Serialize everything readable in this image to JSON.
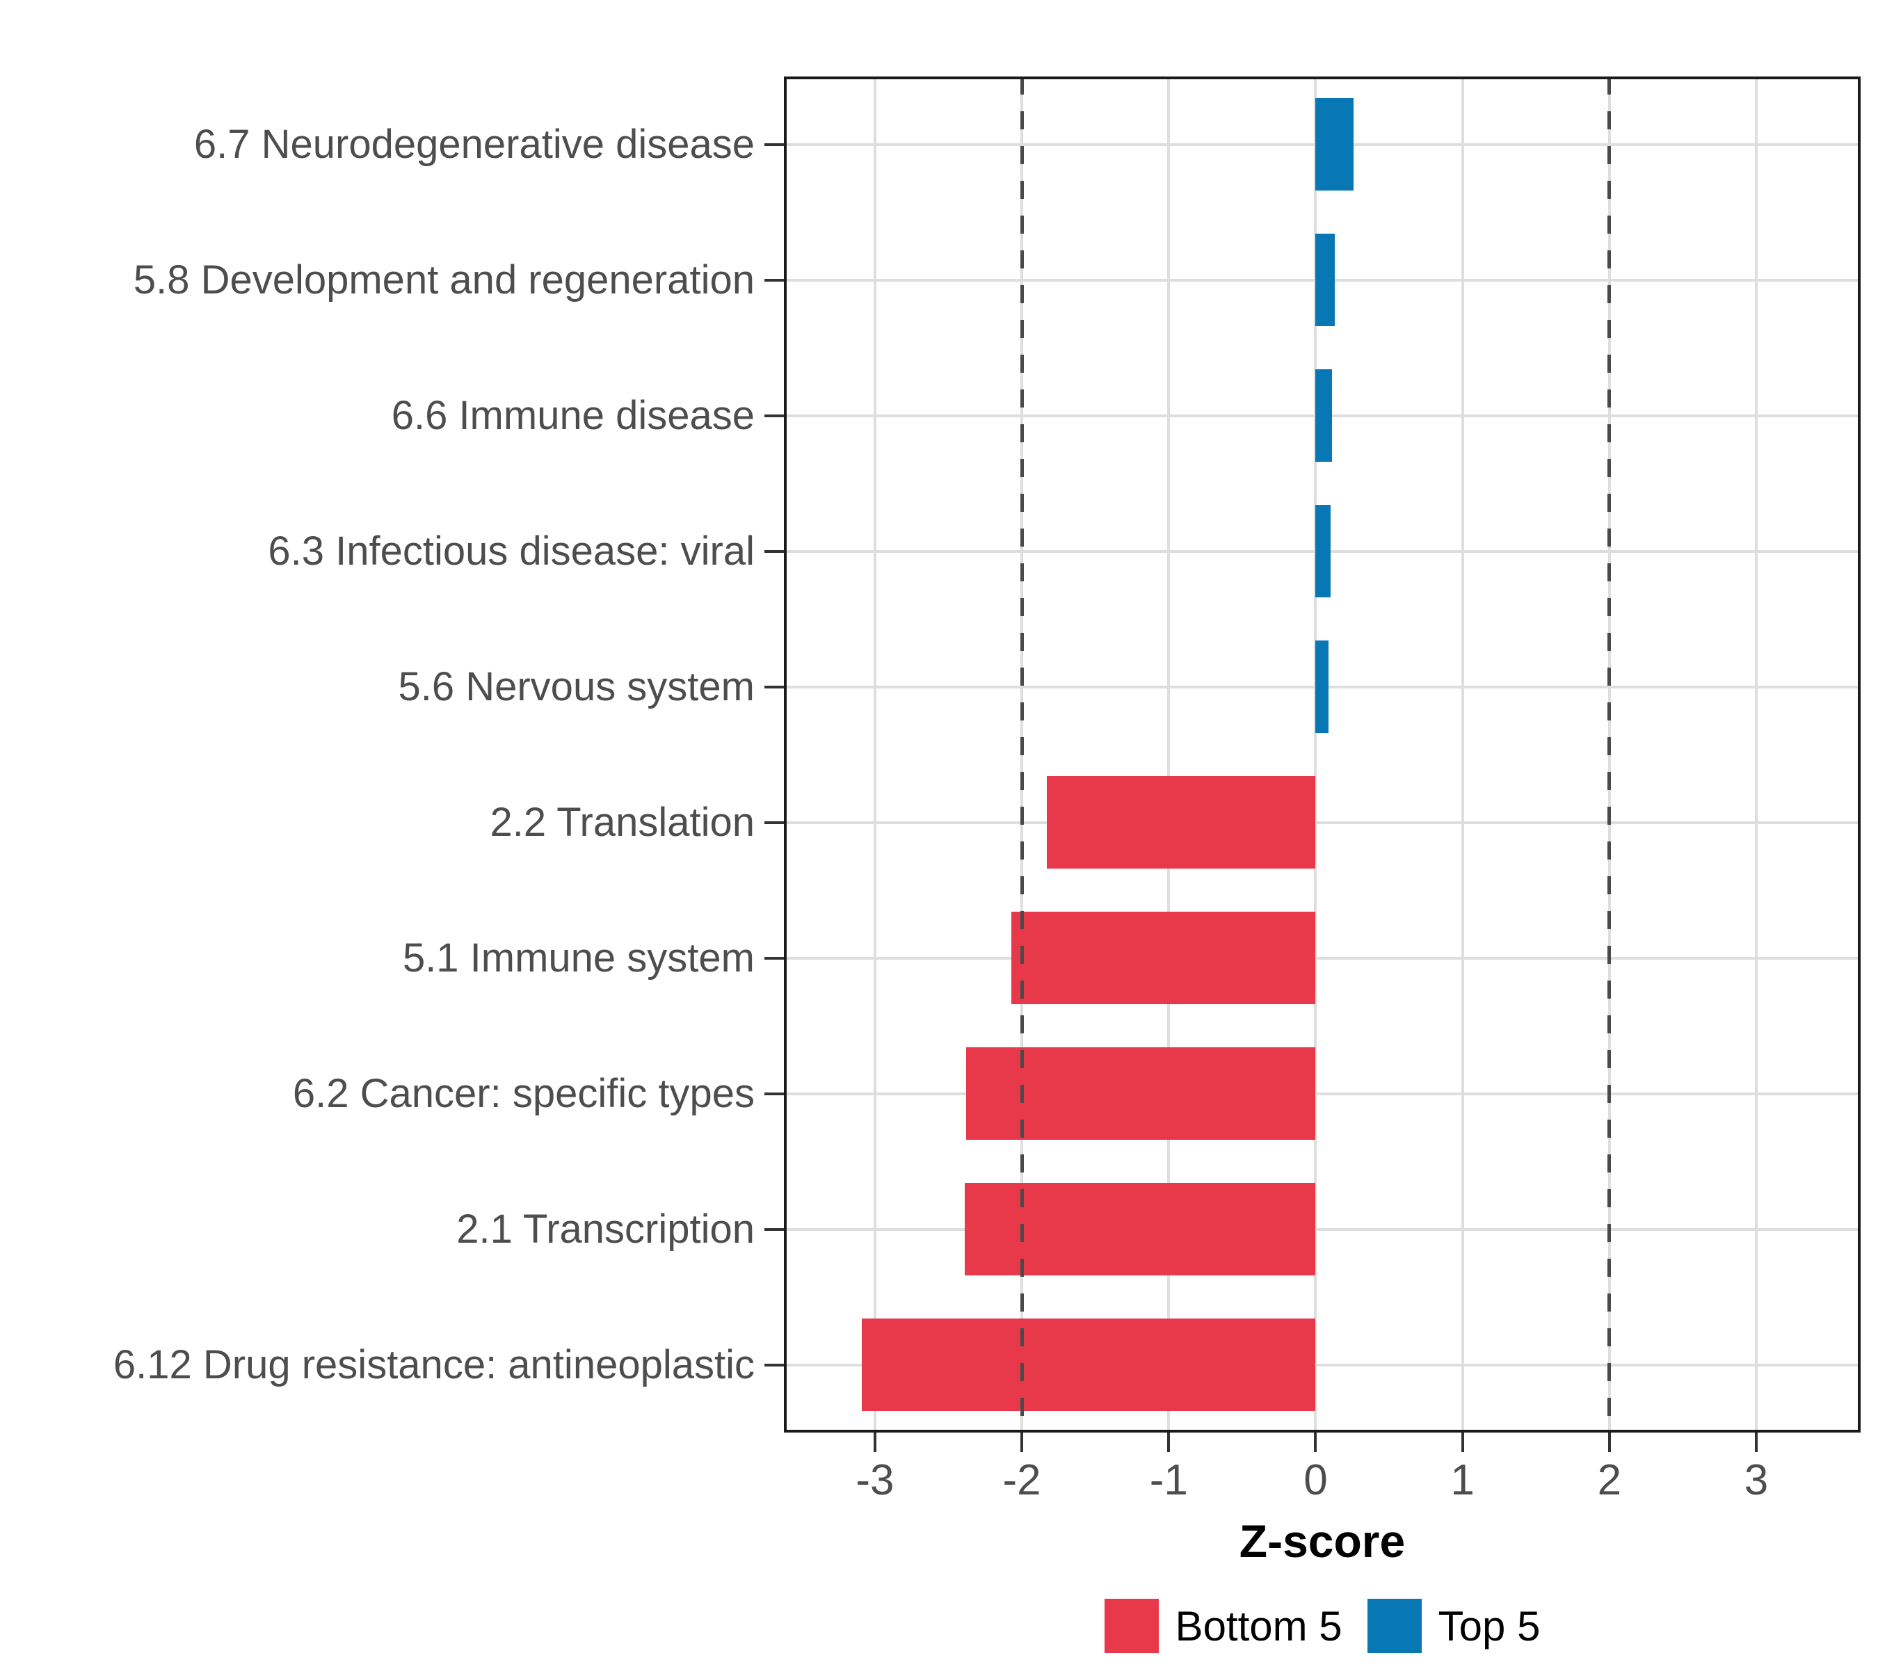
{
  "figure": {
    "background": "#ffffff"
  },
  "chart_data": {
    "type": "bar",
    "orientation": "horizontal",
    "title": "",
    "xlabel": "Z-score",
    "ylabel": "",
    "x_ticks": [
      "-3",
      "-2",
      "-1",
      "0",
      "1",
      "2",
      "3"
    ],
    "x_tick_values": [
      -3,
      -2,
      -1,
      0,
      1,
      2,
      3
    ],
    "xlim": [
      -3.62,
      3.71
    ],
    "grid": true,
    "legend_position": "bottom",
    "reference_lines": {
      "values": [
        -2,
        2
      ],
      "style": "dashed",
      "color": "#4a4a4a"
    },
    "categories": [
      "6.7 Neurodegenerative disease",
      "5.8 Development and regeneration",
      "6.6 Immune disease",
      "6.3 Infectious disease: viral",
      "5.6 Nervous system",
      "2.2 Translation",
      "5.1 Immune system",
      "6.2 Cancer: specific types",
      "2.1 Transcription",
      "6.12 Drug resistance: antineoplastic"
    ],
    "bars": [
      {
        "category": "6.7 Neurodegenerative disease",
        "value": 0.26,
        "group": "Top 5"
      },
      {
        "category": "5.8 Development and regeneration",
        "value": 0.13,
        "group": "Top 5"
      },
      {
        "category": "6.6 Immune disease",
        "value": 0.11,
        "group": "Top 5"
      },
      {
        "category": "6.3 Infectious disease: viral",
        "value": 0.1,
        "group": "Top 5"
      },
      {
        "category": "5.6 Nervous system",
        "value": 0.09,
        "group": "Top 5"
      },
      {
        "category": "2.2 Translation",
        "value": -1.83,
        "group": "Bottom 5"
      },
      {
        "category": "5.1 Immune system",
        "value": -2.07,
        "group": "Bottom 5"
      },
      {
        "category": "6.2 Cancer: specific types",
        "value": -2.38,
        "group": "Bottom 5"
      },
      {
        "category": "2.1 Transcription",
        "value": -2.39,
        "group": "Bottom 5"
      },
      {
        "category": "6.12 Drug resistance: antineoplastic",
        "value": -3.09,
        "group": "Bottom 5"
      }
    ],
    "legend": [
      {
        "label": "Bottom 5",
        "color": "#E8394A"
      },
      {
        "label": "Top 5",
        "color": "#0778B4"
      }
    ],
    "colors": {
      "Bottom 5": "#E8394A",
      "Top 5": "#0778B4",
      "gridline": "#DEDEDE",
      "panel_border": "#1a1a1a",
      "axis_text": "#4d4d4d",
      "tick_mark": "#333333",
      "reference_line": "#4a4a4a"
    }
  }
}
